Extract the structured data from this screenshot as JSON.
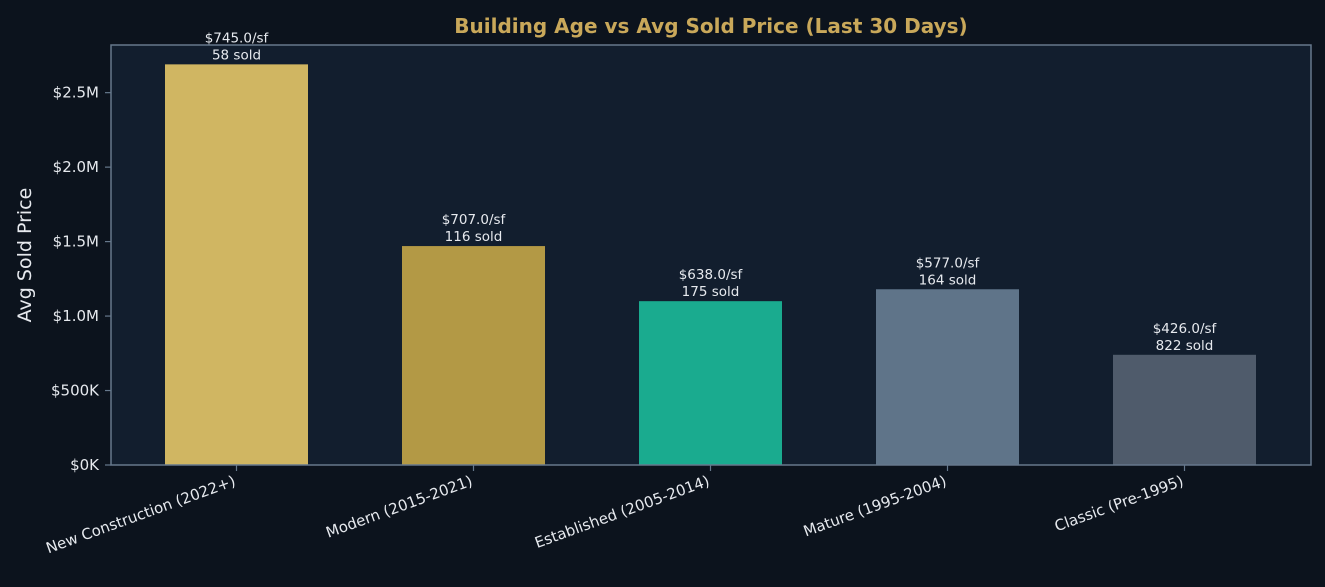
{
  "chart_data": {
    "type": "bar",
    "title": "Building Age vs Avg Sold Price (Last 30 Days)",
    "xlabel": "",
    "ylabel": "Avg Sold Price",
    "ylim": [
      0,
      2820000
    ],
    "yticks": [
      {
        "value": 0,
        "label": "$0K"
      },
      {
        "value": 500000,
        "label": "$500K"
      },
      {
        "value": 1000000,
        "label": "$1.0M"
      },
      {
        "value": 1500000,
        "label": "$1.5M"
      },
      {
        "value": 2000000,
        "label": "$2.0M"
      },
      {
        "value": 2500000,
        "label": "$2.5M"
      }
    ],
    "categories": [
      "New Construction (2022+)",
      "Modern (2015-2021)",
      "Established (2005-2014)",
      "Mature (1995-2004)",
      "Classic (Pre-1995)"
    ],
    "values": [
      2690000,
      1470000,
      1100000,
      1180000,
      740000
    ],
    "price_per_sf_labels": [
      "$745.0/sf",
      "$707.0/sf",
      "$638.0/sf",
      "$577.0/sf",
      "$426.0/sf"
    ],
    "sold_labels": [
      "58 sold",
      "116 sold",
      "175 sold",
      "164 sold",
      "822 sold"
    ],
    "colors": [
      "#d0b662",
      "#b39945",
      "#1aab8f",
      "#5f7489",
      "#4f5b6b"
    ],
    "grid": false,
    "legend": "none"
  },
  "theme": {
    "page_bg": "#0c131d",
    "plot_bg": "#121e2e",
    "axis_color": "#66788c",
    "title_color": "#c9a85a",
    "text_color": "#e6e9ee"
  }
}
